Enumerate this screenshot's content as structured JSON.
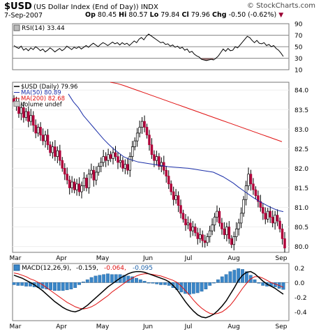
{
  "header": {
    "symbol": "$USD",
    "name": "(US Dollar Index (End of Day)) INDX",
    "watermark": "© StockCharts.com",
    "date": "7-Sep-2007",
    "open_label": "Op",
    "open": "80.45",
    "high_label": "Hi",
    "high": "80.57",
    "low_label": "Lo",
    "low": "79.84",
    "close_label": "Cl",
    "close": "79.96",
    "chg_label": "Chg",
    "chg": "-0.50 (-0.62%)"
  },
  "chart_data": [
    {
      "type": "line",
      "panel": "rsi",
      "legend": "RSI(14) 33.44",
      "yticks": [
        90,
        70,
        50,
        30,
        10
      ],
      "ylim": [
        10,
        90
      ],
      "reference_lines": [
        70,
        50,
        30
      ],
      "series": [
        {
          "name": "RSI(14)",
          "values": [
            52,
            49,
            47,
            51,
            44,
            47,
            43,
            48,
            45,
            50,
            47,
            43,
            46,
            41,
            44,
            48,
            45,
            41,
            44,
            47,
            43,
            46,
            51,
            48,
            45,
            49,
            47,
            50,
            46,
            49,
            52,
            49,
            53,
            56,
            53,
            50,
            54,
            57,
            55,
            52,
            55,
            58,
            55,
            57,
            53,
            57,
            54,
            56,
            52,
            56,
            60,
            57,
            63,
            66,
            62,
            68,
            72,
            69,
            66,
            63,
            60,
            57,
            58,
            54,
            55,
            51,
            53,
            49,
            51,
            47,
            49,
            44,
            46,
            40,
            42,
            37,
            34,
            32,
            28,
            27,
            26,
            27,
            28,
            27,
            30,
            34,
            40,
            46,
            42,
            47,
            43,
            44,
            50,
            48,
            53,
            58,
            63,
            68,
            66,
            61,
            57,
            61,
            56,
            55,
            57,
            52,
            54,
            50,
            52,
            47,
            44,
            39,
            33
          ]
        }
      ],
      "shaded_below": 30
    },
    {
      "type": "candlestick",
      "panel": "price",
      "legend": [
        {
          "label": "$USD (Daily) 79.96",
          "color": "#000000"
        },
        {
          "label": "MA(50) 80.89",
          "color": "#1a2ea8"
        },
        {
          "label": "MA(200) 82.68",
          "color": "#e01010"
        },
        {
          "label": "Volume undef",
          "color": "#000000"
        }
      ],
      "x_labels": [
        "Mar",
        "Apr",
        "May",
        "Jun",
        "Jul",
        "Aug",
        "Sep"
      ],
      "yticks": [
        84.0,
        83.5,
        83.0,
        82.5,
        82.0,
        81.5,
        81.0,
        80.5,
        80.0
      ],
      "ylim": [
        79.85,
        84.2
      ],
      "close": [
        83.7,
        83.62,
        83.4,
        83.55,
        83.3,
        83.45,
        83.2,
        83.35,
        83.1,
        82.9,
        83.05,
        82.85,
        82.7,
        82.85,
        82.6,
        82.4,
        82.55,
        82.3,
        82.45,
        82.2,
        82.0,
        81.85,
        81.7,
        81.5,
        81.65,
        81.45,
        81.6,
        81.4,
        81.55,
        81.75,
        81.5,
        81.85,
        81.95,
        81.7,
        81.9,
        82.05,
        82.15,
        82.3,
        82.2,
        82.35,
        82.25,
        82.4,
        82.3,
        82.15,
        82.2,
        82.0,
        82.1,
        81.95,
        82.3,
        82.55,
        82.7,
        82.9,
        83.05,
        83.2,
        83.05,
        82.85,
        82.6,
        82.35,
        82.2,
        82.3,
        82.05,
        82.15,
        81.95,
        81.8,
        81.6,
        81.4,
        81.2,
        81.3,
        81.05,
        80.85,
        80.7,
        80.55,
        80.6,
        80.4,
        80.5,
        80.35,
        80.2,
        80.3,
        80.15,
        80.1,
        80.25,
        80.4,
        80.55,
        80.75,
        80.9,
        80.6,
        80.45,
        80.3,
        80.5,
        80.2,
        80.05,
        80.25,
        80.45,
        80.6,
        80.85,
        81.2,
        81.55,
        81.85,
        81.6,
        81.45,
        81.3,
        81.15,
        81.0,
        80.85,
        80.7,
        80.9,
        80.75,
        80.6,
        80.8,
        80.65,
        80.45,
        80.2,
        79.96
      ],
      "series": [
        {
          "name": "MA(50)",
          "values": [
            83.9,
            83.7,
            83.55,
            83.35,
            83.2,
            83.05,
            82.9,
            82.75,
            82.62,
            82.5,
            82.4,
            82.3,
            82.24,
            82.2,
            82.16,
            82.14,
            82.12,
            82.1,
            82.08,
            82.06,
            82.04,
            82.03,
            82.02,
            82.01,
            82.0,
            81.98,
            81.96,
            81.94,
            81.92,
            81.9,
            81.84,
            81.78,
            81.7,
            81.62,
            81.52,
            81.43,
            81.34,
            81.25,
            81.17,
            81.1,
            81.03,
            80.97,
            80.92,
            80.89
          ]
        },
        {
          "name": "MA(200)",
          "values": [
            84.2,
            84.17,
            84.12,
            84.06,
            84.0,
            83.94,
            83.88,
            83.82,
            83.76,
            83.7,
            83.64,
            83.58,
            83.52,
            83.46,
            83.4,
            83.34,
            83.28,
            83.22,
            83.16,
            83.1,
            83.04,
            82.98,
            82.92,
            82.86,
            82.8,
            82.74,
            82.68
          ]
        }
      ]
    },
    {
      "type": "line",
      "panel": "macd",
      "legend": [
        {
          "label": "MACD(12,26,9)",
          "color": "#000000"
        },
        {
          "label": "-0.159",
          "color": "#000000"
        },
        {
          "label": "-0.064",
          "color": "#e01010"
        },
        {
          "label": "-0.095",
          "color": "#1a5fa8"
        }
      ],
      "x_labels": [
        "Mar",
        "Apr",
        "May",
        "Jun",
        "Jul",
        "Aug",
        "Sep"
      ],
      "yticks": [
        0.2,
        0.0,
        -0.2,
        -0.4
      ],
      "ylim": [
        -0.52,
        0.26
      ],
      "series": [
        {
          "name": "MACD",
          "values": [
            0.1,
            0.08,
            0.06,
            0.03,
            0.0,
            -0.03,
            -0.07,
            -0.11,
            -0.16,
            -0.21,
            -0.26,
            -0.3,
            -0.34,
            -0.37,
            -0.39,
            -0.4,
            -0.38,
            -0.35,
            -0.31,
            -0.26,
            -0.21,
            -0.16,
            -0.11,
            -0.06,
            -0.02,
            0.02,
            0.06,
            0.09,
            0.12,
            0.14,
            0.15,
            0.15,
            0.14,
            0.12,
            0.1,
            0.08,
            0.06,
            0.04,
            0.01,
            -0.04,
            -0.1,
            -0.18,
            -0.26,
            -0.33,
            -0.39,
            -0.44,
            -0.47,
            -0.48,
            -0.46,
            -0.43,
            -0.38,
            -0.32,
            -0.25,
            -0.16,
            -0.07,
            0.03,
            0.1,
            0.14,
            0.15,
            0.12,
            0.07,
            0.02,
            -0.02,
            -0.05,
            -0.08,
            -0.12,
            -0.159
          ]
        },
        {
          "name": "Signal",
          "values": [
            0.13,
            0.12,
            0.1,
            0.08,
            0.05,
            0.03,
            0.0,
            -0.03,
            -0.07,
            -0.11,
            -0.15,
            -0.19,
            -0.23,
            -0.27,
            -0.3,
            -0.33,
            -0.35,
            -0.36,
            -0.35,
            -0.33,
            -0.3,
            -0.26,
            -0.22,
            -0.18,
            -0.13,
            -0.09,
            -0.05,
            -0.01,
            0.03,
            0.06,
            0.09,
            0.11,
            0.12,
            0.12,
            0.11,
            0.1,
            0.09,
            0.07,
            0.05,
            0.03,
            0.0,
            -0.05,
            -0.11,
            -0.17,
            -0.24,
            -0.3,
            -0.35,
            -0.39,
            -0.42,
            -0.43,
            -0.42,
            -0.4,
            -0.36,
            -0.31,
            -0.24,
            -0.16,
            -0.08,
            -0.01,
            0.05,
            0.08,
            0.08,
            0.06,
            0.03,
            0.0,
            -0.02,
            -0.04,
            -0.064
          ]
        }
      ]
    }
  ]
}
